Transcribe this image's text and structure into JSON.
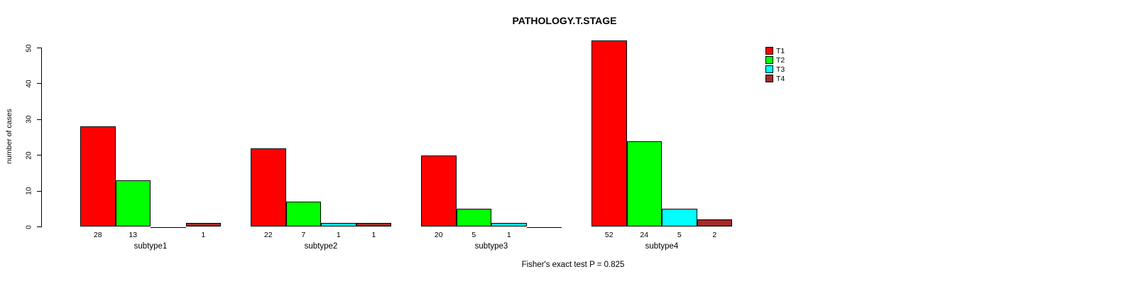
{
  "title": "PATHOLOGY.T.STAGE",
  "caption": "Fisher's exact test P = 0.825",
  "chart_data": {
    "type": "bar",
    "title": "PATHOLOGY.T.STAGE",
    "xlabel": "",
    "ylabel": "number of cases",
    "categories": [
      "subtype1",
      "subtype2",
      "subtype3",
      "subtype4"
    ],
    "series": [
      {
        "name": "T1",
        "color": "#ff0000",
        "values": [
          28,
          22,
          20,
          52
        ]
      },
      {
        "name": "T2",
        "color": "#00ff00",
        "values": [
          13,
          7,
          5,
          24
        ]
      },
      {
        "name": "T3",
        "color": "#00ffff",
        "values": [
          0,
          1,
          1,
          5
        ]
      },
      {
        "name": "T4",
        "color": "#a52a2a",
        "values": [
          1,
          1,
          0,
          2
        ]
      }
    ],
    "bar_value_labels": {
      "subtype1": [
        "28",
        "13",
        "",
        "1"
      ],
      "subtype2": [
        "22",
        "7",
        "1",
        "1"
      ],
      "subtype3": [
        "20",
        "5",
        "1",
        ""
      ],
      "subtype4": [
        "52",
        "24",
        "5",
        "2"
      ]
    },
    "yticks": [
      0,
      10,
      20,
      30,
      40,
      50
    ],
    "ylim": [
      0,
      52
    ],
    "grid": false,
    "legend_position": "top-right",
    "annotation": "Fisher's exact test P = 0.825",
    "axis_color": "#000000",
    "bar_border_color": "#000000"
  }
}
